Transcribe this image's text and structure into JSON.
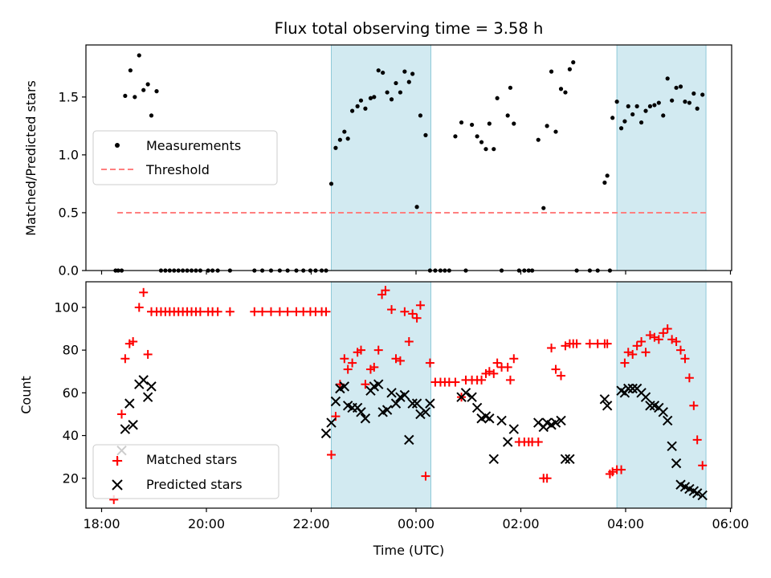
{
  "chart_data": [
    {
      "panel": "top",
      "type": "scatter",
      "title": "Flux total observing time = 3.58 h",
      "xlabel": "",
      "ylabel": "Matched/Predicted stars",
      "ylim": [
        0,
        1.95
      ],
      "yticks": [
        "0.0",
        "0.5",
        "1.0",
        "1.5"
      ],
      "legend": {
        "placement": "center-left",
        "entries": [
          "Measurements",
          "Threshold"
        ]
      },
      "shaded_intervals": [
        [
          "22:23",
          "00:17"
        ],
        [
          "03:50",
          "05:32"
        ]
      ],
      "threshold": {
        "value": 0.5,
        "from": "18:18",
        "to": "05:32"
      },
      "series": [
        {
          "name": "Measurements",
          "marker": "dot",
          "color": "#000000",
          "x": [
            "18:16",
            "18:19",
            "18:23",
            "18:27",
            "18:33",
            "18:38",
            "18:43",
            "18:48",
            "18:53",
            "18:57",
            "19:03",
            "19:08",
            "19:13",
            "19:18",
            "19:23",
            "19:28",
            "19:33",
            "19:38",
            "19:43",
            "19:48",
            "19:53",
            "20:02",
            "20:07",
            "20:13",
            "20:27",
            "20:55",
            "21:04",
            "21:14",
            "21:24",
            "21:33",
            "21:43",
            "21:51",
            "21:59",
            "22:05",
            "22:12",
            "22:17",
            "22:23",
            "22:28",
            "22:33",
            "22:38",
            "22:42",
            "22:47",
            "22:53",
            "22:57",
            "23:02",
            "23:08",
            "23:12",
            "23:17",
            "23:22",
            "23:27",
            "23:32",
            "23:37",
            "23:42",
            "23:47",
            "23:52",
            "23:56",
            "00:01",
            "00:05",
            "00:11",
            "00:16",
            "00:22",
            "00:28",
            "00:33",
            "00:38",
            "00:45",
            "00:52",
            "00:57",
            "01:04",
            "01:10",
            "01:15",
            "01:20",
            "01:24",
            "01:29",
            "01:33",
            "01:38",
            "01:45",
            "01:48",
            "01:52",
            "01:58",
            "02:04",
            "02:09",
            "02:13",
            "02:20",
            "02:26",
            "02:30",
            "02:35",
            "02:40",
            "02:46",
            "02:51",
            "02:56",
            "03:00",
            "03:04",
            "03:19",
            "03:28",
            "03:36",
            "03:39",
            "03:42",
            "03:45",
            "03:50",
            "03:55",
            "03:59",
            "04:03",
            "04:08",
            "04:13",
            "04:18",
            "04:23",
            "04:28",
            "04:33",
            "04:38",
            "04:43",
            "04:48",
            "04:53",
            "04:58",
            "05:03",
            "05:08",
            "05:13",
            "05:18",
            "05:22",
            "05:28"
          ],
          "y": [
            0,
            0,
            0,
            1.51,
            1.73,
            1.5,
            1.86,
            1.56,
            1.61,
            1.34,
            1.55,
            0,
            0,
            0,
            0,
            0,
            0,
            0,
            0,
            0,
            0,
            0,
            0,
            0,
            0,
            0,
            0,
            0,
            0,
            0,
            0,
            0,
            0,
            0,
            0,
            0,
            0.75,
            1.06,
            1.13,
            1.2,
            1.14,
            1.38,
            1.42,
            1.47,
            1.4,
            1.49,
            1.5,
            1.73,
            1.71,
            1.54,
            1.48,
            1.62,
            1.54,
            1.72,
            1.63,
            1.7,
            0.55,
            1.34,
            1.17,
            0,
            0,
            0,
            0,
            0,
            1.16,
            1.28,
            0,
            1.26,
            1.16,
            1.11,
            1.05,
            1.27,
            1.05,
            1.49,
            0,
            1.34,
            1.58,
            1.27,
            0,
            0,
            0,
            0,
            1.13,
            0.54,
            1.25,
            1.72,
            1.2,
            1.57,
            1.54,
            1.74,
            1.8,
            0,
            0,
            0,
            0.76,
            0.82,
            0,
            1.32,
            1.46,
            1.23,
            1.29,
            1.42,
            1.35,
            1.42,
            1.28,
            1.38,
            1.42,
            1.43,
            1.45,
            1.34,
            1.66,
            1.47,
            1.58,
            1.59,
            1.46,
            1.45,
            1.53,
            1.4,
            1.52
          ]
        }
      ]
    },
    {
      "panel": "bottom",
      "type": "scatter",
      "title": "",
      "xlabel": "Time (UTC)",
      "ylabel": "Count",
      "ylim": [
        6,
        112
      ],
      "yticks": [
        "20",
        "40",
        "60",
        "80",
        "100"
      ],
      "xticks": [
        "18:00",
        "20:00",
        "22:00",
        "00:00",
        "02:00",
        "04:00",
        "06:00"
      ],
      "legend": {
        "placement": "lower-left",
        "entries": [
          "Matched stars",
          "Predicted stars"
        ]
      },
      "shaded_intervals": [
        [
          "22:23",
          "00:17"
        ],
        [
          "03:50",
          "05:32"
        ]
      ],
      "series": [
        {
          "name": "Matched stars",
          "marker": "plus",
          "color": "#ff0000",
          "x": [
            "18:14",
            "18:19",
            "18:23",
            "18:27",
            "18:32",
            "18:36",
            "18:43",
            "18:48",
            "18:53",
            "18:57",
            "19:03",
            "19:08",
            "19:13",
            "19:18",
            "19:23",
            "19:28",
            "19:33",
            "19:38",
            "19:43",
            "19:48",
            "19:53",
            "20:02",
            "20:07",
            "20:13",
            "20:27",
            "20:55",
            "21:04",
            "21:14",
            "21:24",
            "21:33",
            "21:43",
            "21:51",
            "21:59",
            "22:05",
            "22:12",
            "22:17",
            "22:23",
            "22:28",
            "22:33",
            "22:38",
            "22:42",
            "22:47",
            "22:53",
            "22:57",
            "23:02",
            "23:08",
            "23:12",
            "23:17",
            "23:21",
            "23:25",
            "23:32",
            "23:37",
            "23:42",
            "23:47",
            "23:52",
            "23:56",
            "00:01",
            "00:05",
            "00:11",
            "00:16",
            "00:22",
            "00:28",
            "00:33",
            "00:38",
            "00:45",
            "00:52",
            "00:57",
            "01:04",
            "01:10",
            "01:15",
            "01:20",
            "01:24",
            "01:29",
            "01:33",
            "01:38",
            "01:45",
            "01:48",
            "01:52",
            "01:58",
            "02:04",
            "02:09",
            "02:13",
            "02:20",
            "02:26",
            "02:30",
            "02:35",
            "02:40",
            "02:46",
            "02:51",
            "02:56",
            "03:00",
            "03:04",
            "03:19",
            "03:28",
            "03:36",
            "03:39",
            "03:42",
            "03:45",
            "03:50",
            "03:55",
            "03:59",
            "04:03",
            "04:08",
            "04:13",
            "04:18",
            "04:23",
            "04:28",
            "04:33",
            "04:38",
            "04:43",
            "04:48",
            "04:53",
            "04:58",
            "05:03",
            "05:08",
            "05:13",
            "05:18",
            "05:22",
            "05:28"
          ],
          "y": [
            10,
            28,
            50,
            76,
            83,
            84,
            100,
            107,
            78,
            98,
            98,
            98,
            98,
            98,
            98,
            98,
            98,
            98,
            98,
            98,
            98,
            98,
            98,
            98,
            98,
            98,
            98,
            98,
            98,
            98,
            98,
            98,
            98,
            98,
            98,
            98,
            31,
            49,
            64,
            76,
            71,
            74,
            79,
            80,
            64,
            71,
            72,
            80,
            106,
            108,
            99,
            76,
            75,
            98,
            84,
            97,
            95,
            101,
            21,
            74,
            65,
            65,
            65,
            65,
            65,
            58,
            66,
            66,
            66,
            66,
            69,
            70,
            69,
            74,
            72,
            72,
            66,
            76,
            37,
            37,
            37,
            37,
            37,
            20,
            20,
            81,
            71,
            68,
            82,
            83,
            83,
            83,
            83,
            83,
            83,
            83,
            22,
            23,
            24,
            24,
            74,
            79,
            78,
            82,
            84,
            79,
            87,
            86,
            85,
            88,
            90,
            85,
            84,
            80,
            76,
            67,
            54,
            38,
            26
          ],
          "plot_x": [
            "18:14",
            "18:19",
            "18:23",
            "18:27",
            "18:32",
            "18:36",
            "18:43",
            "18:48",
            "18:53",
            "18:57",
            "19:03",
            "19:08",
            "19:13",
            "19:18",
            "19:23",
            "19:28",
            "19:33",
            "19:38",
            "19:43",
            "19:48",
            "19:53",
            "20:02",
            "20:07",
            "20:13",
            "20:27",
            "20:55",
            "21:04",
            "21:14",
            "21:24",
            "21:33",
            "21:43",
            "21:51",
            "21:59",
            "22:05",
            "22:12",
            "22:17",
            "22:23",
            "22:28",
            "22:33",
            "22:38",
            "22:42",
            "22:47",
            "22:53",
            "22:57",
            "23:02",
            "23:08",
            "23:12",
            "23:17",
            "23:21",
            "23:25",
            "23:32",
            "23:37",
            "23:42",
            "23:47",
            "23:52",
            "23:56",
            "00:01",
            "00:05",
            "00:11",
            "00:16",
            "00:22",
            "00:28",
            "00:33",
            "00:38",
            "00:45",
            "00:52",
            "00:57",
            "01:04",
            "01:10",
            "01:15",
            "01:20",
            "01:24",
            "01:29",
            "01:33",
            "01:38",
            "01:45",
            "01:48",
            "01:52",
            "01:58",
            "02:04",
            "02:09",
            "02:13",
            "02:20",
            "02:26",
            "02:30",
            "02:35",
            "02:40",
            "02:46",
            "02:51",
            "02:56",
            "03:00",
            "03:04",
            "03:19",
            "03:28",
            "03:36",
            "03:39",
            "03:42",
            "03:45",
            "03:50",
            "03:55",
            "03:59",
            "04:03",
            "04:08",
            "04:13",
            "04:18",
            "04:23",
            "04:28",
            "04:33",
            "04:38",
            "04:43",
            "04:48",
            "04:53",
            "04:58",
            "05:03",
            "05:08",
            "05:13",
            "05:18",
            "05:22",
            "05:28"
          ]
        },
        {
          "name": "Predicted stars",
          "marker": "cross",
          "color": "#000000",
          "x": [
            "18:23",
            "18:27",
            "18:32",
            "18:36",
            "18:43",
            "18:48",
            "18:53",
            "18:57",
            "22:17",
            "22:23",
            "22:28",
            "22:33",
            "22:38",
            "22:42",
            "22:47",
            "22:53",
            "22:57",
            "23:02",
            "23:08",
            "23:12",
            "23:17",
            "23:22",
            "23:27",
            "23:32",
            "23:37",
            "23:42",
            "23:47",
            "23:52",
            "23:56",
            "00:01",
            "00:05",
            "00:11",
            "00:16",
            "00:52",
            "00:57",
            "01:04",
            "01:10",
            "01:15",
            "01:20",
            "01:24",
            "01:29",
            "01:38",
            "01:45",
            "01:52",
            "02:20",
            "02:26",
            "02:30",
            "02:35",
            "02:40",
            "02:46",
            "02:51",
            "02:56",
            "03:36",
            "03:39",
            "03:55",
            "03:59",
            "04:03",
            "04:08",
            "04:13",
            "04:18",
            "04:23",
            "04:28",
            "04:33",
            "04:38",
            "04:43",
            "04:48",
            "04:53",
            "04:58",
            "05:03",
            "05:08",
            "05:13",
            "05:18",
            "05:22",
            "05:28"
          ],
          "y": [
            33,
            43,
            55,
            45,
            64,
            66,
            58,
            63,
            41,
            46,
            56,
            62,
            63,
            54,
            53,
            53,
            51,
            48,
            61,
            63,
            64,
            51,
            52,
            60,
            55,
            58,
            59,
            38,
            55,
            55,
            50,
            51,
            55,
            58,
            60,
            58,
            53,
            48,
            49,
            48,
            29,
            47,
            37,
            43,
            46,
            44,
            46,
            45,
            46,
            47,
            29,
            29,
            57,
            54,
            61,
            60,
            62,
            62,
            62,
            60,
            58,
            54,
            54,
            53,
            51,
            47,
            35,
            27,
            17,
            16,
            15,
            14,
            13,
            12
          ],
          "plot_x": [
            "18:23",
            "18:27",
            "18:32",
            "18:36",
            "18:43",
            "18:48",
            "18:53",
            "18:57",
            "22:17",
            "22:23",
            "22:28",
            "22:33",
            "22:38",
            "22:42",
            "22:47",
            "22:53",
            "22:57",
            "23:02",
            "23:08",
            "23:12",
            "23:17",
            "23:22",
            "23:27",
            "23:32",
            "23:37",
            "23:42",
            "23:47",
            "23:52",
            "23:56",
            "00:01",
            "00:05",
            "00:11",
            "00:16",
            "00:52",
            "00:57",
            "01:04",
            "01:10",
            "01:15",
            "01:20",
            "01:24",
            "01:29",
            "01:38",
            "01:45",
            "01:52",
            "02:20",
            "02:26",
            "02:30",
            "02:35",
            "02:40",
            "02:46",
            "02:51",
            "02:56",
            "03:36",
            "03:39",
            "03:55",
            "03:59",
            "04:03",
            "04:08",
            "04:13",
            "04:18",
            "04:23",
            "04:28",
            "04:33",
            "04:38",
            "04:43",
            "04:48",
            "04:53",
            "04:58",
            "05:03",
            "05:08",
            "05:13",
            "05:18",
            "05:22",
            "05:28"
          ]
        }
      ]
    }
  ],
  "colors": {
    "shade": "#add8e6",
    "threshold": "#ff7f7f",
    "matched": "#ff0000",
    "predicted": "#000000",
    "measurements": "#000000"
  }
}
